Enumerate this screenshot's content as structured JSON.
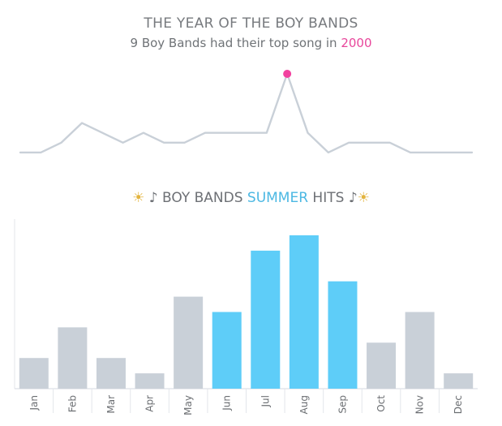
{
  "header": {
    "title": "THE YEAR OF THE BOY BANDS",
    "subtitle_count": "9",
    "subtitle_text": " Boy Bands had their top song in ",
    "subtitle_year": "2000"
  },
  "section2": {
    "sun_left": "☀",
    "note_left": "♪",
    "prefix": " BOY BANDS ",
    "highlight": "SUMMER",
    "suffix": " HITS ",
    "note_right": "♪",
    "sun_right": "☀"
  },
  "colors": {
    "line": "#c9d0d8",
    "peak_dot": "#f2419f",
    "bar_default": "#c9d0d8",
    "bar_summer": "#5ecdf8"
  },
  "chart_data": [
    {
      "type": "line",
      "series": [
        {
          "values": [
            1,
            1,
            2,
            4,
            3,
            2,
            3,
            2,
            2,
            3,
            3,
            3,
            3,
            9,
            3,
            1,
            2,
            2,
            2,
            1,
            1,
            1,
            1
          ]
        }
      ],
      "highlight_index": 13,
      "ylim": [
        0,
        9
      ]
    },
    {
      "type": "bar",
      "categories": [
        "Jan",
        "Feb",
        "Mar",
        "Apr",
        "May",
        "Jun",
        "Jul",
        "Aug",
        "Sep",
        "Oct",
        "Nov",
        "Dec"
      ],
      "values": [
        2,
        4,
        2,
        1,
        6,
        5,
        9,
        10,
        7,
        3,
        5,
        1
      ],
      "highlighted": [
        false,
        false,
        false,
        false,
        false,
        true,
        true,
        true,
        true,
        false,
        false,
        false
      ],
      "ylim": [
        0,
        10
      ]
    }
  ]
}
